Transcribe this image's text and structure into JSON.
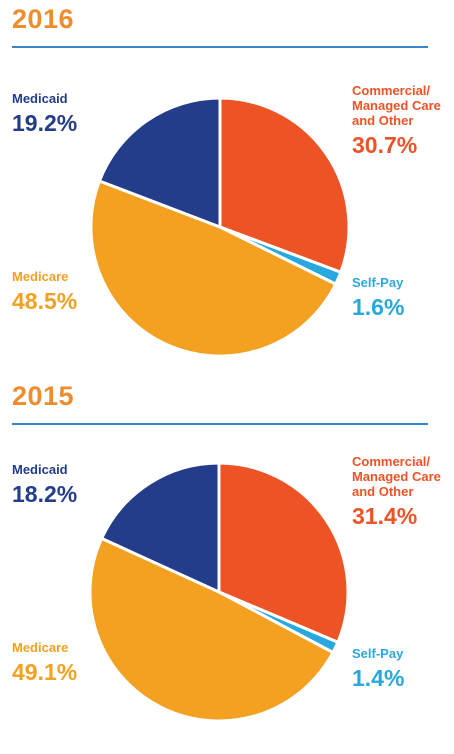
{
  "colors": {
    "year": "#ee8d2d",
    "rule": "#3a86c8",
    "Medicaid": "#233d8b",
    "Commercial": "#ee5326",
    "Medicare": "#f4a020",
    "SelfPay": "#29a8e0"
  },
  "chart_data": [
    {
      "type": "pie",
      "title": "2016",
      "slices": [
        {
          "key": "commercial",
          "label": "Commercial/ Managed Care and Other",
          "value": 30.7,
          "display": "30.7%",
          "color": "#ee5326"
        },
        {
          "key": "selfpay",
          "label": "Self-Pay",
          "value": 1.6,
          "display": "1.6%",
          "color": "#29a8e0"
        },
        {
          "key": "medicare",
          "label": "Medicare",
          "value": 48.5,
          "display": "48.5%",
          "color": "#f4a020"
        },
        {
          "key": "medicaid",
          "label": "Medicaid",
          "value": 19.2,
          "display": "19.2%",
          "color": "#233d8b"
        }
      ]
    },
    {
      "type": "pie",
      "title": "2015",
      "slices": [
        {
          "key": "commercial",
          "label": "Commercial/ Managed Care and Other",
          "value": 31.4,
          "display": "31.4%",
          "color": "#ee5326"
        },
        {
          "key": "selfpay",
          "label": "Self-Pay",
          "value": 1.4,
          "display": "1.4%",
          "color": "#29a8e0"
        },
        {
          "key": "medicare",
          "label": "Medicare",
          "value": 49.1,
          "display": "49.1%",
          "color": "#f4a020"
        },
        {
          "key": "medicaid",
          "label": "Medicaid",
          "value": 18.2,
          "display": "18.2%",
          "color": "#233d8b"
        }
      ]
    }
  ]
}
